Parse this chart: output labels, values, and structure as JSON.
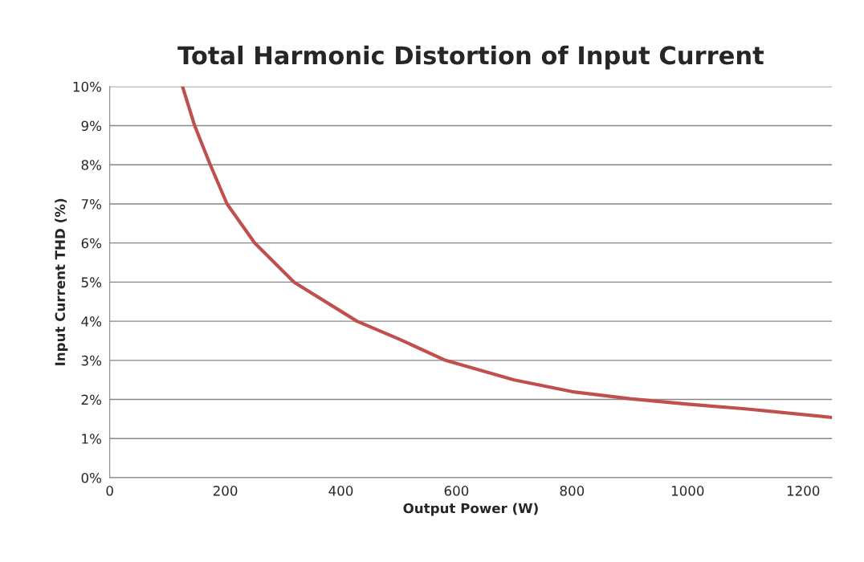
{
  "chart_data": {
    "type": "line",
    "title": "Total Harmonic Distortion of Input Current",
    "xlabel": "Output Power (W)",
    "ylabel": "Input Current THD (%)",
    "series": [
      {
        "color": "#c0504d",
        "x": [
          126,
          147,
          174,
          203,
          251,
          319,
          428,
          500,
          581,
          700,
          800,
          900,
          1000,
          1100,
          1250
        ],
        "values": [
          10,
          9,
          8,
          7,
          6,
          5,
          4,
          3.55,
          3,
          2.5,
          2.2,
          2.02,
          1.88,
          1.76,
          1.54
        ]
      }
    ],
    "xlim": [
      0,
      1250
    ],
    "xticks": [
      0,
      200,
      400,
      600,
      800,
      1000,
      1200
    ],
    "ylim": [
      0,
      10
    ],
    "yticks": [
      {
        "value": 0,
        "label": "0%"
      },
      {
        "value": 1,
        "label": "1%"
      },
      {
        "value": 2,
        "label": "2%"
      },
      {
        "value": 3,
        "label": "3%"
      },
      {
        "value": 4,
        "label": "4%"
      },
      {
        "value": 5,
        "label": "5%"
      },
      {
        "value": 6,
        "label": "6%"
      },
      {
        "value": 7,
        "label": "7%"
      },
      {
        "value": 8,
        "label": "8%"
      },
      {
        "value": 9,
        "label": "9%"
      },
      {
        "value": 10,
        "label": "10%"
      }
    ],
    "grid": "y",
    "line_style": "solid",
    "marker": "none"
  }
}
